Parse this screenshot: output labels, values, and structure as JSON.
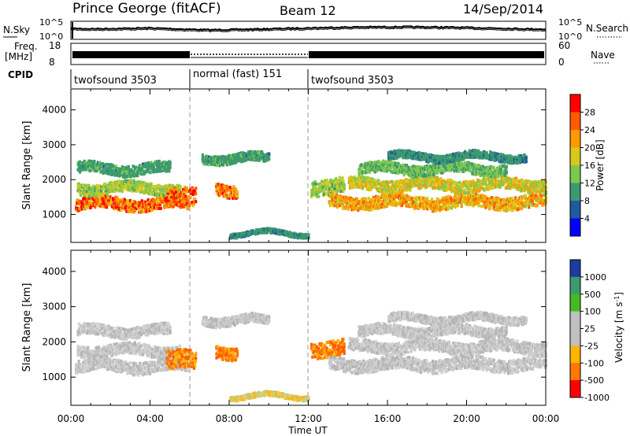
{
  "header": {
    "station": "Prince George (fitACF)",
    "beam": "Beam 12",
    "date": "14/Sep/2014"
  },
  "top_panels": {
    "nsky_label": "N.Sky",
    "nsearch_label": "N.Search",
    "noise_ticks": [
      "10^5",
      "10^0"
    ],
    "freq_label_line1": "Freq.",
    "freq_label_line2": "[MHz]",
    "freq_ticks": [
      "18",
      "8"
    ],
    "nave_label": "Nave",
    "nave_ticks": [
      "60",
      "0"
    ],
    "cpid_label": "CPID",
    "cpid_segments": [
      {
        "label": "twofsound 3503",
        "start_h": 0,
        "end_h": 6
      },
      {
        "label": "normal (fast) 151",
        "start_h": 6,
        "end_h": 12
      },
      {
        "label": "twofsound 3503",
        "start_h": 12,
        "end_h": 24
      }
    ]
  },
  "chart_data": [
    {
      "type": "heatmap",
      "panel": "power",
      "ylabel": "Slant Range [km]",
      "xlabel": "",
      "yticks": [
        1000,
        2000,
        3000,
        4000
      ],
      "ylim": [
        200,
        4600
      ],
      "xlim": [
        0,
        24
      ],
      "colorbar_label": "Power [dB]",
      "colorbar_ticks": [
        "28",
        "24",
        "20",
        "16",
        "12",
        "8",
        "4"
      ],
      "colorbar_colors": [
        "#ff0000",
        "#ff5a00",
        "#ff9a00",
        "#d7c81e",
        "#7ec850",
        "#3c9a6e",
        "#1e5aa0",
        "#0000ff"
      ]
    },
    {
      "type": "heatmap",
      "panel": "velocity",
      "ylabel": "Slant Range [km]",
      "xlabel": "Time UT",
      "xticks": [
        "00:00",
        "04:00",
        "08:00",
        "12:00",
        "16:00",
        "20:00",
        "00:00"
      ],
      "yticks": [
        1000,
        2000,
        3000,
        4000
      ],
      "ylim": [
        200,
        4600
      ],
      "xlim": [
        0,
        24
      ],
      "colorbar_label": "Velocity [m s",
      "colorbar_unit_superscript": "-1",
      "colorbar_ticks": [
        "1000",
        "500",
        "100",
        "25",
        "-25",
        "-100",
        "-500",
        "-1000"
      ],
      "colorbar_colors": [
        "#1e3ca0",
        "#3c9a6e",
        "#44bb22",
        "#c0c0c0",
        "#c0c0c0",
        "#ffb400",
        "#ff7800",
        "#ff0000"
      ]
    }
  ]
}
